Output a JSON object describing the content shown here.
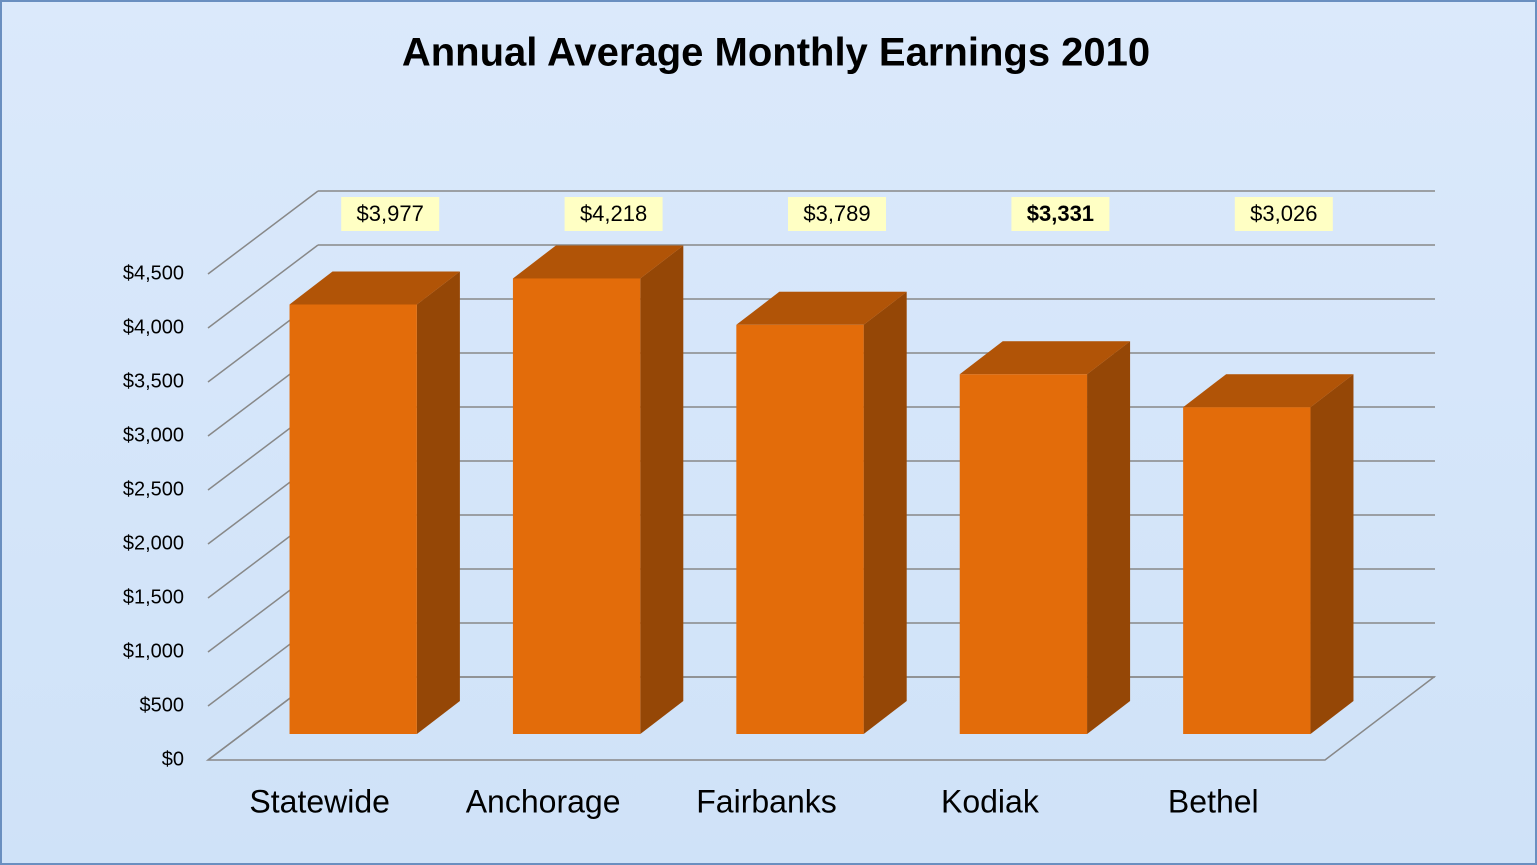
{
  "chart_data": {
    "type": "bar3d",
    "title": "Annual Average Monthly Earnings 2010",
    "categories": [
      "Statewide",
      "Anchorage",
      "Fairbanks",
      "Kodiak",
      "Bethel"
    ],
    "values": [
      3977,
      4218,
      3789,
      3331,
      3026
    ],
    "value_labels": [
      "$3,977",
      "$4,218",
      "$3,789",
      "$3,331",
      "$3,026"
    ],
    "color": "#e36c0a",
    "ylim": [
      0,
      4500
    ],
    "yticks": [
      {
        "value": 0,
        "label": "$0"
      },
      {
        "value": 500,
        "label": "$500"
      },
      {
        "value": 1000,
        "label": "$1,000"
      },
      {
        "value": 1500,
        "label": "$1,500"
      },
      {
        "value": 2000,
        "label": "$2,000"
      },
      {
        "value": 2500,
        "label": "$2,500"
      },
      {
        "value": 3000,
        "label": "$3,000"
      },
      {
        "value": 3500,
        "label": "$3,500"
      },
      {
        "value": 4000,
        "label": "$4,000"
      },
      {
        "value": 4500,
        "label": "$4,500"
      }
    ],
    "grid": true
  }
}
